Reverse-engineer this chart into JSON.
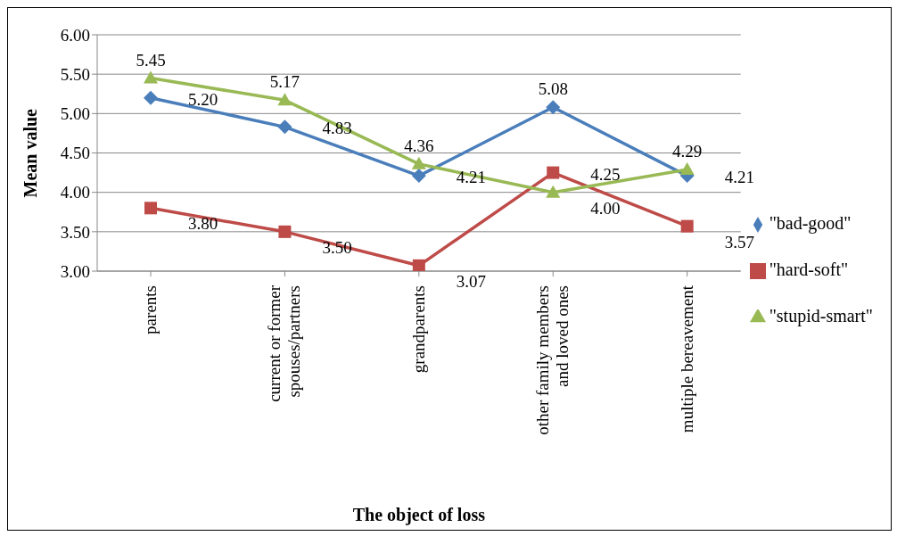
{
  "chart_data": {
    "type": "line",
    "xlabel": "The object of loss",
    "ylabel": "Mean value",
    "categories": [
      "parents",
      "current or former spouses/partners",
      "grandparents",
      "other family members and loved ones",
      "multiple bereavement"
    ],
    "series": [
      {
        "name": "\"bad-good\"",
        "color": "#4a7ebb",
        "marker": "diamond",
        "values": [
          5.2,
          4.83,
          4.21,
          5.08,
          4.21
        ],
        "value_labels": [
          "5.20",
          "4.83",
          "4.21",
          "5.08",
          "4.21"
        ]
      },
      {
        "name": "\"hard-soft\"",
        "color": "#be4b48",
        "marker": "square",
        "values": [
          3.8,
          3.5,
          3.07,
          4.25,
          3.57
        ],
        "value_labels": [
          "3.80",
          "3.50",
          "3.07",
          "4.25",
          "3.57"
        ]
      },
      {
        "name": "\"stupid-smart\"",
        "color": "#98b954",
        "marker": "triangle",
        "values": [
          5.45,
          5.17,
          4.36,
          4.0,
          4.29
        ],
        "value_labels": [
          "5.45",
          "5.17",
          "4.36",
          "4.00",
          "4.29"
        ]
      }
    ],
    "ylim": [
      3,
      6
    ],
    "yticks": [
      {
        "value": 3,
        "label": "3.00"
      },
      {
        "value": 3.5,
        "label": "3.50"
      },
      {
        "value": 4,
        "label": "4.00"
      },
      {
        "value": 4.5,
        "label": "4.50"
      },
      {
        "value": 5,
        "label": "5.00"
      },
      {
        "value": 5.5,
        "label": "5.50"
      },
      {
        "value": 6,
        "label": "6.00"
      }
    ],
    "grid": "y",
    "legend": "right",
    "line_style": "solid"
  }
}
